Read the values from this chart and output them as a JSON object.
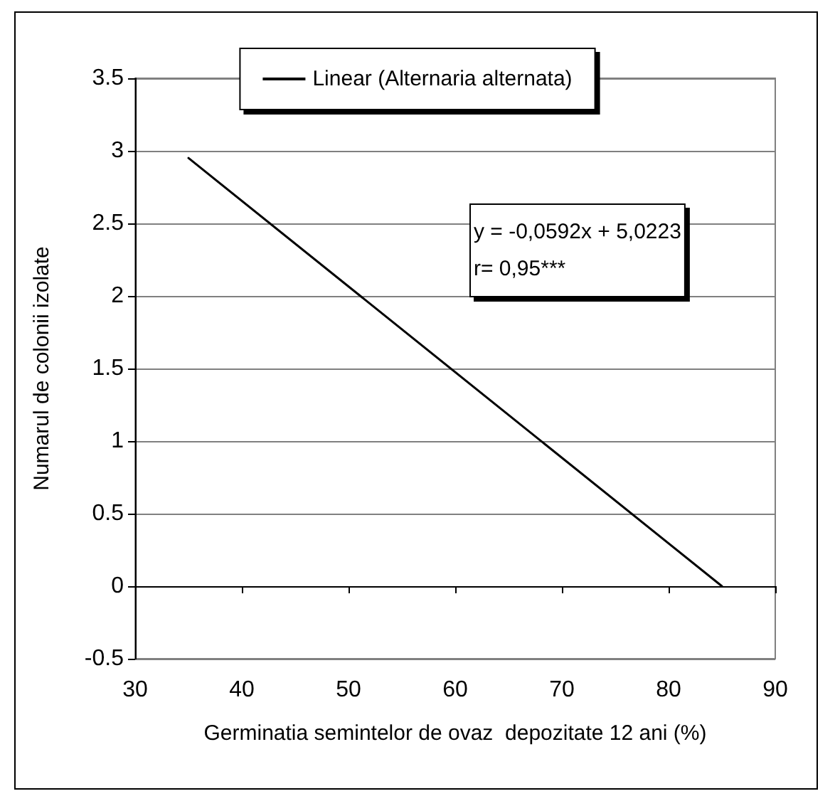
{
  "chart_data": {
    "type": "line",
    "xlabel": "Germinatia semintelor de ovaz  depozitate 12 ani (%)",
    "ylabel": "Numarul de colonii izolate",
    "series": [
      {
        "name": "Linear (Alternaria alternata)",
        "color": "#000000",
        "x": [
          35,
          85
        ],
        "values": [
          2.95,
          0
        ]
      }
    ],
    "xlim": [
      30,
      90
    ],
    "xticks": [
      30,
      40,
      50,
      60,
      70,
      80,
      90
    ],
    "ylim": [
      -0.5,
      3.5
    ],
    "yticks": [
      -0.5,
      0,
      0.5,
      1,
      1.5,
      2,
      2.5,
      3,
      3.5
    ],
    "annotations": [
      "y = -0,0592x + 5,0223\nr= 0,95***"
    ],
    "grid": "y",
    "legend": "top",
    "marker": "none",
    "line_style": "solid"
  }
}
